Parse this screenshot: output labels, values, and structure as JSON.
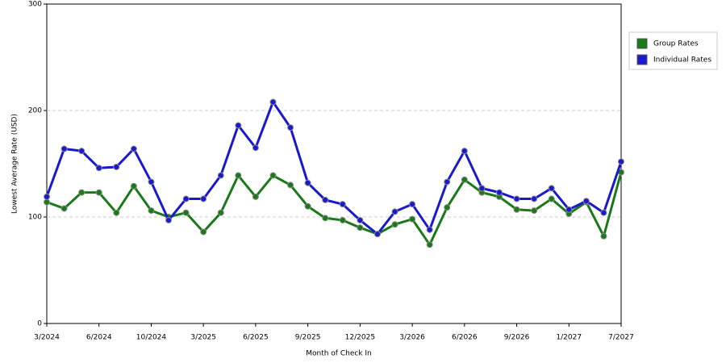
{
  "chart_data": {
    "type": "line",
    "xlabel": "Month of Check In",
    "ylabel": "Lowest Average Rate (USD)",
    "categories": [
      "3/2024",
      null,
      null,
      "6/2024",
      null,
      null,
      "10/2024",
      null,
      null,
      "3/2025",
      null,
      null,
      "6/2025",
      null,
      null,
      "9/2025",
      null,
      null,
      "12/2025",
      null,
      null,
      "3/2026",
      null,
      null,
      "6/2026",
      null,
      null,
      "9/2026",
      null,
      null,
      "1/2027",
      null,
      null,
      "7/2027"
    ],
    "series": [
      {
        "name": "Group Rates",
        "color": "#1a7a1a",
        "values": [
          114,
          108,
          123,
          123,
          104,
          129,
          106,
          100,
          104,
          86,
          104,
          139,
          119,
          139,
          130,
          110,
          99,
          97,
          90,
          84,
          93,
          98,
          74,
          109,
          135,
          123,
          119,
          107,
          106,
          117,
          103,
          114,
          82,
          142
        ]
      },
      {
        "name": "Individual Rates",
        "color": "#1a1acc",
        "values": [
          119,
          164,
          162,
          146,
          147,
          164,
          133,
          97,
          117,
          117,
          139,
          186,
          165,
          208,
          184,
          132,
          116,
          112,
          97,
          84,
          105,
          112,
          88,
          133,
          162,
          127,
          123,
          117,
          117,
          127,
          107,
          115,
          104,
          152
        ]
      }
    ],
    "ylim": [
      0,
      300
    ],
    "yticks": [
      0,
      100,
      200,
      300
    ],
    "grid": true,
    "legend": "right"
  }
}
